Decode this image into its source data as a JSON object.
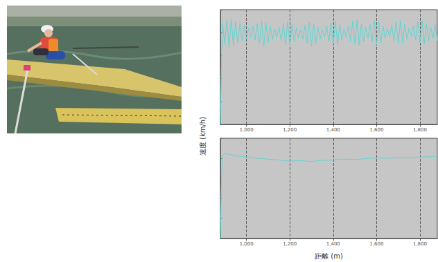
{
  "chart_data": [
    {
      "type": "line",
      "color": "#5fd6d2",
      "grid": true,
      "tick_labels": "x",
      "xlim": [
        880,
        1880
      ],
      "xticks": [
        {
          "value": 1000,
          "label": "1,000"
        },
        {
          "value": 1200,
          "label": "1,200"
        },
        {
          "value": 1400,
          "label": "1,400"
        },
        {
          "value": 1600,
          "label": "1,600"
        },
        {
          "value": 1800,
          "label": "1,800"
        }
      ],
      "ylim": [
        0,
        25
      ],
      "yticks": [
        0,
        5,
        10,
        15,
        20,
        25
      ],
      "x": [
        880,
        884,
        888,
        890,
        900,
        910,
        920,
        930,
        940,
        950,
        960,
        970,
        980,
        990,
        1000,
        1010,
        1020,
        1030,
        1040,
        1050,
        1060,
        1070,
        1080,
        1090,
        1100,
        1110,
        1120,
        1130,
        1140,
        1150,
        1160,
        1170,
        1180,
        1190,
        1200,
        1210,
        1220,
        1230,
        1240,
        1250,
        1260,
        1270,
        1280,
        1290,
        1300,
        1310,
        1320,
        1330,
        1340,
        1350,
        1360,
        1370,
        1380,
        1390,
        1400,
        1410,
        1420,
        1430,
        1440,
        1450,
        1460,
        1470,
        1480,
        1490,
        1500,
        1510,
        1520,
        1530,
        1540,
        1550,
        1560,
        1570,
        1580,
        1590,
        1600,
        1610,
        1620,
        1630,
        1640,
        1650,
        1660,
        1670,
        1680,
        1690,
        1700,
        1710,
        1720,
        1730,
        1740,
        1750,
        1760,
        1770,
        1780,
        1790,
        1800,
        1810,
        1820,
        1830,
        1840,
        1850,
        1860,
        1870,
        1880
      ],
      "values": [
        0,
        11,
        20,
        22.0,
        17.5,
        22.8,
        16.8,
        23.0,
        17.2,
        22.4,
        17.8,
        22.0,
        18.2,
        21.6,
        18.6,
        21.0,
        19.0,
        21.4,
        18.4,
        22.0,
        17.6,
        22.6,
        17.0,
        22.2,
        17.8,
        21.4,
        18.6,
        20.8,
        19.0,
        21.2,
        18.2,
        22.0,
        17.4,
        22.4,
        17.2,
        21.8,
        18.0,
        21.0,
        18.8,
        20.6,
        18.6,
        21.6,
        17.6,
        22.2,
        17.0,
        22.0,
        17.6,
        21.2,
        18.6,
        20.6,
        19.0,
        21.4,
        18.0,
        22.2,
        17.2,
        22.6,
        17.4,
        21.8,
        18.4,
        20.8,
        19.0,
        21.6,
        18.2,
        22.6,
        17.4,
        22.8,
        17.2,
        22.0,
        18.0,
        21.2,
        18.8,
        21.8,
        18.0,
        22.6,
        17.4,
        22.4,
        17.8,
        21.4,
        18.8,
        20.8,
        19.2,
        21.6,
        18.2,
        22.4,
        17.6,
        22.6,
        17.8,
        21.8,
        18.6,
        21.0,
        19.2,
        21.6,
        18.4,
        22.4,
        17.8,
        22.6,
        17.6,
        22.0,
        18.2,
        21.2,
        18.8,
        21.8,
        18.2
      ]
    },
    {
      "type": "line",
      "color": "#5fd6d2",
      "grid": true,
      "tick_labels": "x",
      "x_label": "距離 (m)",
      "y_label": "速度 (km/h)",
      "xlim": [
        880,
        1880
      ],
      "xticks": [
        {
          "value": 1000,
          "label": "1,000"
        },
        {
          "value": 1200,
          "label": "1,200"
        },
        {
          "value": 1400,
          "label": "1,400"
        },
        {
          "value": 1600,
          "label": "1,600"
        },
        {
          "value": 1800,
          "label": "1,800"
        }
      ],
      "ylim": [
        0,
        25
      ],
      "yticks": [
        0,
        5,
        10,
        15,
        20,
        25
      ],
      "x": [
        880,
        884,
        888,
        900,
        920,
        950,
        1000,
        1050,
        1100,
        1150,
        1200,
        1250,
        1300,
        1350,
        1400,
        1450,
        1500,
        1550,
        1600,
        1650,
        1700,
        1750,
        1800,
        1850,
        1880
      ],
      "values": [
        0,
        12,
        20.5,
        21.2,
        21.0,
        20.6,
        20.4,
        20.0,
        19.8,
        19.6,
        19.3,
        19.4,
        19.2,
        19.5,
        19.6,
        19.8,
        19.7,
        19.9,
        20.1,
        20.0,
        20.2,
        20.1,
        20.3,
        20.4,
        20.6
      ]
    }
  ]
}
